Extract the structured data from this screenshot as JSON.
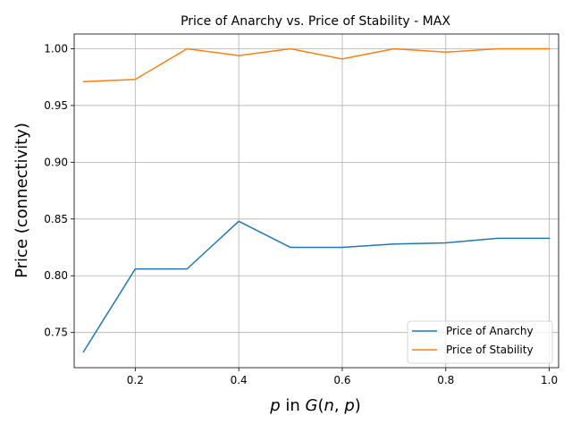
{
  "chart_data": {
    "type": "line",
    "title": "Price of Anarchy vs. Price of Stability - MAX",
    "xlabel_italic_p": "p",
    "xlabel_in": " in ",
    "xlabel_G": "G",
    "xlabel_open": "(",
    "xlabel_n": "n",
    "xlabel_comma": ", ",
    "xlabel_p2": "p",
    "xlabel_close": ")",
    "ylabel": "Price (connectivity)",
    "xlim": [
      0.082,
      1.018
    ],
    "ylim": [
      0.719,
      1.013
    ],
    "xticks": [
      0.2,
      0.4,
      0.6,
      0.8,
      1.0
    ],
    "xtick_labels": [
      "0.2",
      "0.4",
      "0.6",
      "0.8",
      "1.0"
    ],
    "yticks": [
      0.75,
      0.8,
      0.85,
      0.9,
      0.95,
      1.0
    ],
    "ytick_labels": [
      "0.75",
      "0.80",
      "0.85",
      "0.90",
      "0.95",
      "1.00"
    ],
    "grid": true,
    "legend_position": "lower-right",
    "x": [
      0.1,
      0.2,
      0.3,
      0.4,
      0.5,
      0.6,
      0.7,
      0.8,
      0.9,
      1.0
    ],
    "series": [
      {
        "name": "Price of Anarchy",
        "color": "#1f77b4",
        "values": [
          0.733,
          0.806,
          0.806,
          0.848,
          0.825,
          0.825,
          0.828,
          0.829,
          0.833,
          0.833
        ]
      },
      {
        "name": "Price of Stability",
        "color": "#ff7f0e",
        "values": [
          0.971,
          0.973,
          1.0,
          0.994,
          1.0,
          0.991,
          1.0,
          0.997,
          1.0,
          1.0
        ]
      }
    ]
  }
}
